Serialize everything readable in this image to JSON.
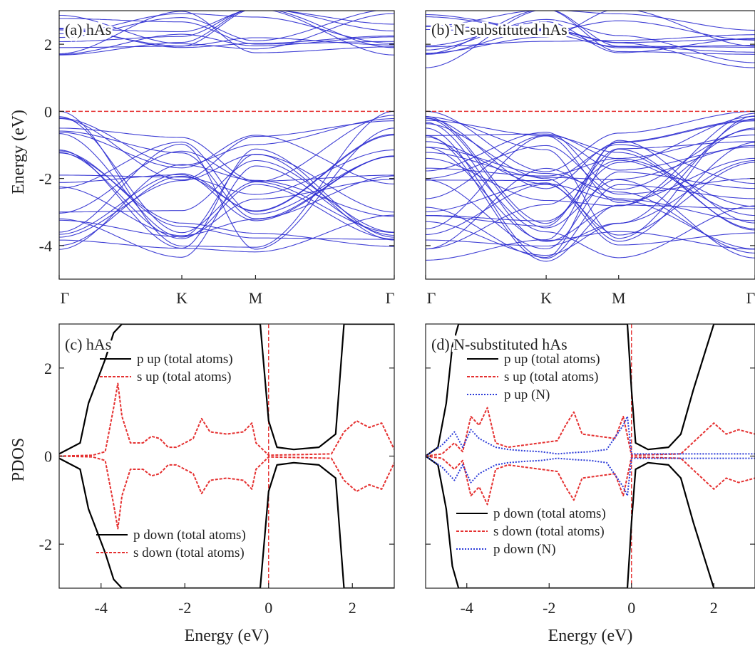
{
  "chart_data": [
    {
      "id": "a",
      "type": "line",
      "panel_label": "(a) hAs",
      "ylabel": "Energy (eV)",
      "ylim": [
        -5,
        3
      ],
      "yticks": [
        "-4",
        "-2",
        "0",
        "2"
      ],
      "xticks": [
        "Γ",
        "K",
        "M",
        "Γ"
      ],
      "fermi_level": 0,
      "bands": {
        "conduction_edge_gamma": [
          1.68,
          1.9
        ],
        "conduction_top": 3,
        "valence_gamma": [
          0,
          -0.5,
          -1.15,
          -1.9,
          -3.0,
          -3.6,
          -3.75
        ],
        "valence_bottom": -4.25
      }
    },
    {
      "id": "b",
      "type": "line",
      "panel_label": "(b) N-substituted hAs",
      "ylim": [
        -5,
        3
      ],
      "xticks": [
        "Γ",
        "K",
        "M",
        "Γ"
      ],
      "fermi_level": 0,
      "bands": {
        "conduction_edge_gamma": [
          1.3,
          1.7
        ],
        "conduction_top": 3,
        "valence_gamma": [
          0,
          -0.15,
          -0.5,
          -0.9,
          -1.4,
          -2.0,
          -2.6,
          -3.1,
          -3.5,
          -4.1
        ],
        "valence_bottom": -4.3
      }
    },
    {
      "id": "c",
      "type": "line",
      "panel_label": "(c) hAs",
      "ylabel": "PDOS",
      "xlabel": "Energy (eV)",
      "xlim": [
        -5,
        3
      ],
      "ylim": [
        -3,
        3
      ],
      "xticks": [
        "-4",
        "-2",
        "0",
        "2"
      ],
      "yticks": [
        "-2",
        "0",
        "2"
      ],
      "series": [
        {
          "name": "p up (total atoms)",
          "color": "#000000",
          "x": [
            -5,
            -4.5,
            -4.3,
            -4.1,
            -3.9,
            -3.7,
            -3.5,
            -3.3,
            -3.2,
            -3.1,
            -2.5,
            -1,
            -0.4,
            -0.2,
            0,
            0.2,
            0.6,
            1.2,
            1.6,
            1.8,
            1.85,
            2.5,
            3
          ],
          "y": [
            0.05,
            0.3,
            1.2,
            1.7,
            2.2,
            2.8,
            3,
            3,
            3,
            3,
            3,
            3,
            3,
            3,
            0.8,
            0.2,
            0.15,
            0.2,
            0.5,
            3,
            3,
            3,
            3
          ]
        },
        {
          "name": "s up (total atoms)",
          "color": "#e53030",
          "x": [
            -5,
            -4.2,
            -3.9,
            -3.7,
            -3.6,
            -3.5,
            -3.3,
            -3,
            -2.8,
            -2.6,
            -2.4,
            -2.2,
            -1.8,
            -1.6,
            -1.4,
            -1,
            -0.6,
            -0.4,
            -0.3,
            0,
            1.5,
            1.8,
            2.1,
            2.4,
            2.7,
            3
          ],
          "y": [
            0,
            0.02,
            0.1,
            1.1,
            1.65,
            0.9,
            0.3,
            0.3,
            0.45,
            0.4,
            0.2,
            0.2,
            0.4,
            0.85,
            0.55,
            0.5,
            0.55,
            0.75,
            0.3,
            0.02,
            0.05,
            0.55,
            0.8,
            0.65,
            0.75,
            0.15
          ]
        },
        {
          "name": "p down (total atoms)",
          "color": "#000000",
          "x": [
            -5,
            -4.5,
            -4.3,
            -4.1,
            -3.9,
            -3.7,
            -3.5,
            -3.3,
            -3.2,
            -3.1,
            -2.5,
            -1,
            -0.4,
            -0.2,
            0,
            0.2,
            0.6,
            1.2,
            1.6,
            1.8,
            1.85,
            2.5,
            3
          ],
          "y": [
            -0.05,
            -0.3,
            -1.2,
            -1.7,
            -2.2,
            -2.8,
            -3,
            -3,
            -3,
            -3,
            -3,
            -3,
            -3,
            -3,
            -0.8,
            -0.2,
            -0.15,
            -0.2,
            -0.5,
            -3,
            -3,
            -3,
            -3
          ]
        },
        {
          "name": "s down (total atoms)",
          "color": "#e53030",
          "x": [
            -5,
            -4.2,
            -3.9,
            -3.7,
            -3.6,
            -3.5,
            -3.3,
            -3,
            -2.8,
            -2.6,
            -2.4,
            -2.2,
            -1.8,
            -1.6,
            -1.4,
            -1,
            -0.6,
            -0.4,
            -0.3,
            0,
            1.5,
            1.8,
            2.1,
            2.4,
            2.7,
            3
          ],
          "y": [
            0,
            -0.02,
            -0.1,
            -1.1,
            -1.65,
            -0.9,
            -0.3,
            -0.3,
            -0.45,
            -0.4,
            -0.2,
            -0.2,
            -0.4,
            -0.85,
            -0.55,
            -0.5,
            -0.55,
            -0.75,
            -0.3,
            -0.02,
            -0.05,
            -0.55,
            -0.8,
            -0.65,
            -0.75,
            -0.15
          ]
        }
      ],
      "legend_up": [
        "p up (total atoms)",
        "s up (total atoms)"
      ],
      "legend_down": [
        "p down (total atoms)",
        "s down (total atoms)"
      ]
    },
    {
      "id": "d",
      "type": "line",
      "panel_label": "(d) N-substituted hAs",
      "xlabel": "Energy (eV)",
      "xlim": [
        -5,
        3
      ],
      "ylim": [
        -3,
        3
      ],
      "xticks": [
        "-4",
        "-2",
        "0",
        "2"
      ],
      "series": [
        {
          "name": "p up (total atoms)",
          "color": "#000000",
          "x": [
            -5,
            -4.7,
            -4.5,
            -4.35,
            -4.2,
            -4.1,
            -3.9,
            -3.8,
            -3.7,
            -3.5,
            -2,
            -0.2,
            -0.1,
            0,
            0.1,
            0.4,
            0.9,
            1.2,
            1.5,
            1.8,
            2,
            2.1,
            2.5,
            3
          ],
          "y": [
            0,
            0.2,
            1.2,
            2.5,
            3,
            3,
            3,
            3,
            3,
            3,
            3,
            3,
            3,
            1.5,
            0.3,
            0.15,
            0.2,
            0.5,
            1.5,
            2.4,
            3,
            3,
            3,
            3
          ]
        },
        {
          "name": "s up (total atoms)",
          "color": "#e53030",
          "x": [
            -5,
            -4.6,
            -4.3,
            -4.1,
            -3.9,
            -3.7,
            -3.5,
            -3.3,
            -3,
            -2.6,
            -2.2,
            -1.8,
            -1.6,
            -1.4,
            -1.2,
            -0.8,
            -0.4,
            -0.2,
            0,
            1.2,
            1.6,
            2,
            2.3,
            2.6,
            3
          ],
          "y": [
            0,
            0.05,
            0.3,
            0.1,
            0.9,
            0.7,
            1.1,
            0.3,
            0.2,
            0.25,
            0.3,
            0.35,
            0.7,
            1.0,
            0.5,
            0.45,
            0.4,
            0.9,
            0.02,
            0.05,
            0.4,
            0.75,
            0.5,
            0.6,
            0.5
          ]
        },
        {
          "name": "p up (N)",
          "color": "#2a3ad8",
          "x": [
            -5,
            -4.6,
            -4.3,
            -4.1,
            -3.9,
            -3.7,
            -3.5,
            -3.3,
            -3,
            -2.6,
            -2.2,
            -1.8,
            -1.4,
            -1,
            -0.6,
            -0.2,
            -0.1,
            0,
            1,
            2,
            3
          ],
          "y": [
            0,
            0.25,
            0.55,
            0.2,
            0.6,
            0.4,
            0.3,
            0.2,
            0.15,
            0.12,
            0.1,
            0.05,
            0.08,
            0.1,
            0.15,
            0.7,
            0.9,
            0.05,
            0.05,
            0.05,
            0.05
          ]
        },
        {
          "name": "p down (total atoms)",
          "color": "#000000",
          "x": [
            -5,
            -4.7,
            -4.5,
            -4.35,
            -4.2,
            -4.1,
            -3.9,
            -3.8,
            -3.7,
            -3.5,
            -2,
            -0.2,
            -0.1,
            0,
            0.1,
            0.4,
            0.9,
            1.2,
            1.5,
            1.8,
            2,
            2.1,
            2.5,
            3
          ],
          "y": [
            0,
            -0.2,
            -1.2,
            -2.5,
            -3,
            -3,
            -3,
            -3,
            -3,
            -3,
            -3,
            -3,
            -3,
            -1.5,
            -0.3,
            -0.15,
            -0.2,
            -0.5,
            -1.5,
            -2.4,
            -3,
            -3,
            -3,
            -3
          ]
        },
        {
          "name": "s down (total atoms)",
          "color": "#e53030",
          "x": [
            -5,
            -4.6,
            -4.3,
            -4.1,
            -3.9,
            -3.7,
            -3.5,
            -3.3,
            -3,
            -2.6,
            -2.2,
            -1.8,
            -1.6,
            -1.4,
            -1.2,
            -0.8,
            -0.4,
            -0.2,
            0,
            1.2,
            1.6,
            2,
            2.3,
            2.6,
            3
          ],
          "y": [
            0,
            -0.05,
            -0.3,
            -0.1,
            -0.9,
            -0.7,
            -1.1,
            -0.3,
            -0.2,
            -0.25,
            -0.3,
            -0.35,
            -0.7,
            -1.0,
            -0.5,
            -0.45,
            -0.4,
            -0.9,
            -0.02,
            -0.05,
            -0.4,
            -0.75,
            -0.5,
            -0.6,
            -0.5
          ]
        },
        {
          "name": "p down (N)",
          "color": "#2a3ad8",
          "x": [
            -5,
            -4.6,
            -4.3,
            -4.1,
            -3.9,
            -3.7,
            -3.5,
            -3.3,
            -3,
            -2.6,
            -2.2,
            -1.8,
            -1.4,
            -1,
            -0.6,
            -0.2,
            -0.1,
            0,
            1,
            2,
            3
          ],
          "y": [
            0,
            -0.25,
            -0.55,
            -0.2,
            -0.6,
            -0.4,
            -0.3,
            -0.2,
            -0.15,
            -0.12,
            -0.1,
            -0.05,
            -0.08,
            -0.1,
            -0.15,
            -0.7,
            -0.9,
            -0.05,
            -0.05,
            -0.05,
            -0.05
          ]
        }
      ],
      "legend_up": [
        "p up (total atoms)",
        "s up (total atoms)",
        "p up (N)"
      ],
      "legend_down": [
        "p down (total atoms)",
        "s down (total atoms)",
        "p down (N)"
      ]
    }
  ]
}
